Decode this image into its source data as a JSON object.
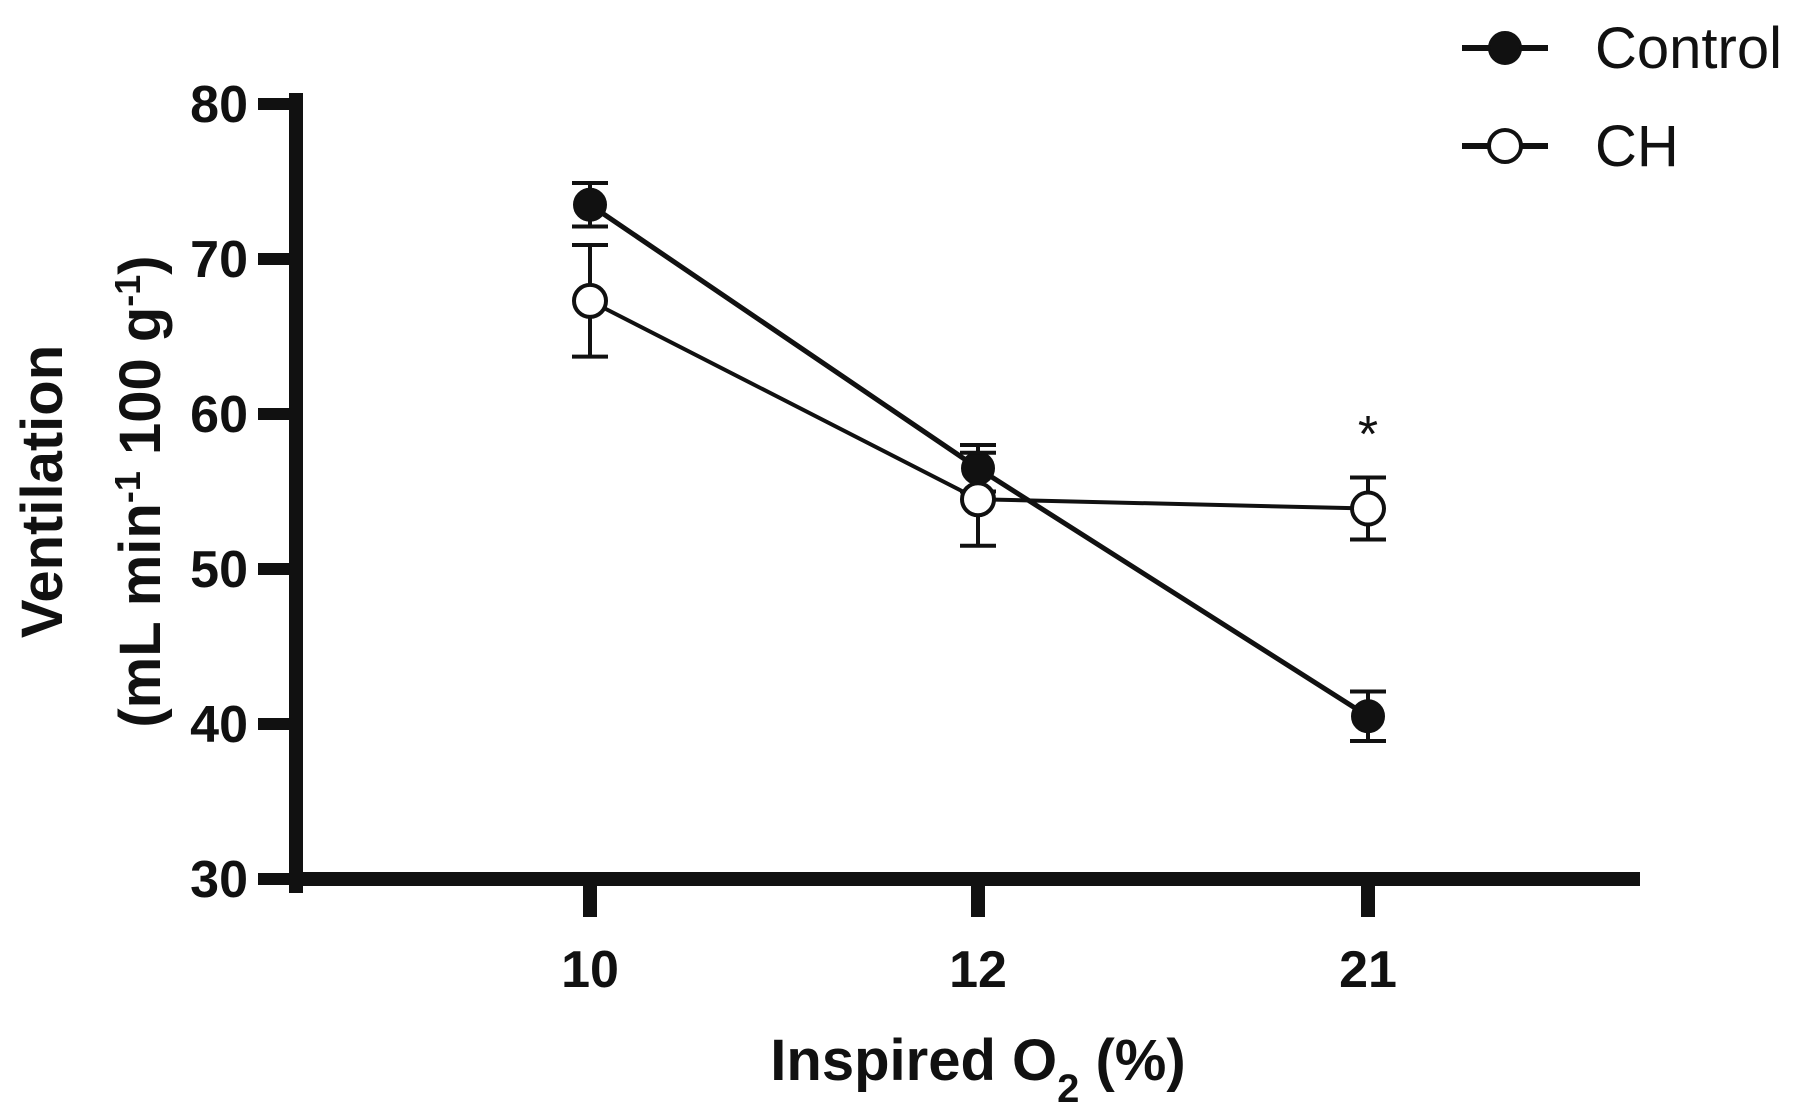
{
  "chart_data": {
    "type": "line",
    "categories": [
      "10",
      "12",
      "21"
    ],
    "xlabel": {
      "main": "Inspired O",
      "sub": "2",
      "suffix": " (%)"
    },
    "ylabel": {
      "line1": "Ventilation",
      "line2_parts": [
        "(mL min",
        "-1",
        " 100 g",
        "-1",
        ")"
      ]
    },
    "ylim": [
      30,
      80
    ],
    "yticks": [
      30,
      40,
      50,
      60,
      70,
      80
    ],
    "grid": false,
    "legend_position": "top-right",
    "series": [
      {
        "name": "Control",
        "marker": "filled-circle",
        "color": "#111111",
        "values": [
          73.5,
          56.5,
          40.5
        ],
        "error": [
          1.4,
          1.5,
          1.6
        ]
      },
      {
        "name": "CH",
        "marker": "open-circle",
        "color": "#111111",
        "values": [
          67.3,
          54.5,
          53.9
        ],
        "error": [
          3.6,
          3.0,
          2.0
        ]
      }
    ],
    "annotations": [
      {
        "text": "*",
        "category": "21",
        "y": 59.5
      }
    ]
  }
}
